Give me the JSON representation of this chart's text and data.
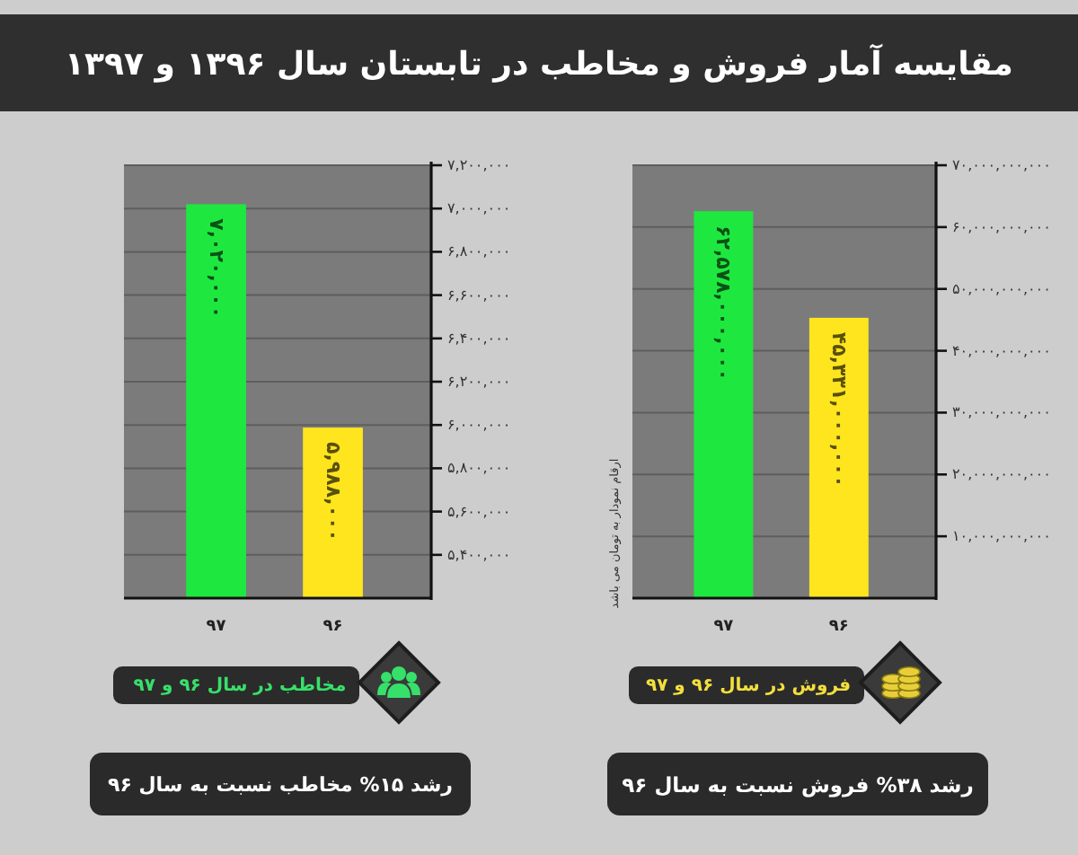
{
  "chart_data": [
    {
      "type": "bar",
      "title": "مقایسه آمار فروش و مخاطب در تابستان سال ۱۳۹۶ و ۱۳۹۷",
      "subtitle": "فروش در سال ۹۶ و ۹۷",
      "ylabel": "ارقام نمودار به تومان می باشد",
      "categories": [
        "۹۷",
        "۹۶"
      ],
      "values": [
        62578000000,
        45331000000
      ],
      "colors": [
        "#1ee83f",
        "#ffe51e"
      ],
      "value_labels": [
        "۶۲,۵۷۸,۰۰۰,۰۰۰",
        "۴۵,۳۳۱,۰۰۰,۰۰۰"
      ],
      "ylim": [
        0,
        70000000000
      ],
      "yticks": [
        {
          "value": 10000000000,
          "label": "۱۰,۰۰۰,۰۰۰,۰۰۰"
        },
        {
          "value": 20000000000,
          "label": "۲۰,۰۰۰,۰۰۰,۰۰۰"
        },
        {
          "value": 30000000000,
          "label": "۳۰,۰۰۰,۰۰۰,۰۰۰"
        },
        {
          "value": 40000000000,
          "label": "۴۰,۰۰۰,۰۰۰,۰۰۰"
        },
        {
          "value": 50000000000,
          "label": "۵۰,۰۰۰,۰۰۰,۰۰۰"
        },
        {
          "value": 60000000000,
          "label": "۶۰,۰۰۰,۰۰۰,۰۰۰"
        },
        {
          "value": 70000000000,
          "label": "۷۰,۰۰۰,۰۰۰,۰۰۰"
        }
      ],
      "grid": "y",
      "annotations": [
        "رشد ۳۸% فروش نسبت به سال ۹۶"
      ]
    },
    {
      "type": "bar",
      "subtitle": "مخاطب در سال ۹۶ و ۹۷",
      "categories": [
        "۹۷",
        "۹۶"
      ],
      "values": [
        7020000,
        5988000
      ],
      "colors": [
        "#1ee83f",
        "#ffe51e"
      ],
      "value_labels": [
        "۷,۰۲۰,۰۰۰",
        "۵,۹۸۸,۰۰۰"
      ],
      "ylim": [
        5200000,
        7200000
      ],
      "yticks": [
        {
          "value": 5400000,
          "label": "۵,۴۰۰,۰۰۰"
        },
        {
          "value": 5600000,
          "label": "۵,۶۰۰,۰۰۰"
        },
        {
          "value": 5800000,
          "label": "۵,۸۰۰,۰۰۰"
        },
        {
          "value": 6000000,
          "label": "۶,۰۰۰,۰۰۰"
        },
        {
          "value": 6200000,
          "label": "۶,۲۰۰,۰۰۰"
        },
        {
          "value": 6400000,
          "label": "۶,۴۰۰,۰۰۰"
        },
        {
          "value": 6600000,
          "label": "۶,۶۰۰,۰۰۰"
        },
        {
          "value": 6800000,
          "label": "۶,۸۰۰,۰۰۰"
        },
        {
          "value": 7000000,
          "label": "۷,۰۰۰,۰۰۰"
        },
        {
          "value": 7200000,
          "label": "۷,۲۰۰,۰۰۰"
        }
      ],
      "grid": "y",
      "annotations": [
        "رشد ۱۵% مخاطب نسبت به سال ۹۶"
      ]
    }
  ]
}
